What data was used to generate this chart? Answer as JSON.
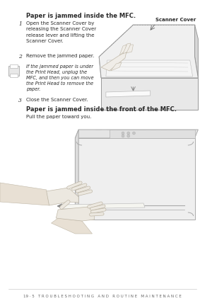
{
  "bg_color": "#ffffff",
  "text_color": "#2a2a2a",
  "title1": "Paper is jammed inside the MFC.",
  "step1_num": "1",
  "step1_text": "Open the Scanner Cover by\nreleasing the Scanner Cover\nrelease lever and lifting the\nScanner Cover.",
  "step2_num": "2",
  "step2_text": "Remove the jammed paper.",
  "note_text": "If the jammed paper is under\nthe Print Head, unplug the\nMFC, and then you can move\nthe Print Head to remove the\npaper.",
  "step3_num": "3",
  "step3_text": "Close the Scanner Cover.",
  "title2": "Paper is jammed inside the front of the MFC.",
  "subtitle2": "Pull the paper toward you.",
  "scanner_cover_label": "Scanner Cover",
  "footer": "19 · 5   T R O U B L E S H O O T I N G   A N D   R O U T I N E   M A I N T E N A N C E",
  "line_color": "#aaaaaa",
  "outline_color": "#888888",
  "light_gray": "#c8c8c8",
  "mid_gray": "#b0b0b0"
}
